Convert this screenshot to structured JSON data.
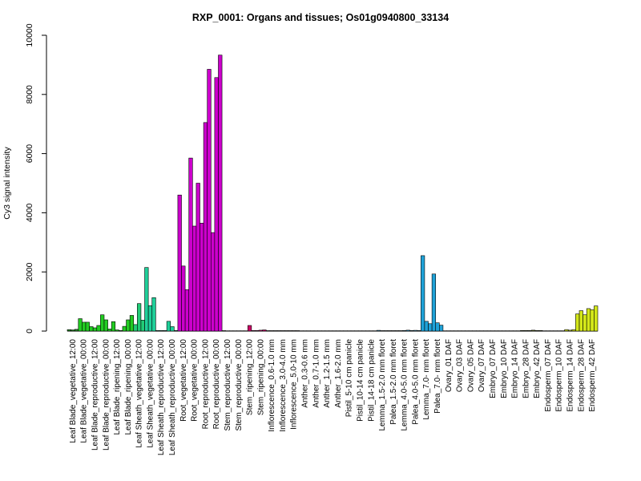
{
  "chart_data": {
    "type": "bar",
    "title": "RXP_0001: Organs and tissues; Os01g0940800_33134",
    "xlabel": "",
    "ylabel": "Cy3 signal intensity",
    "ylim": [
      0,
      10000
    ],
    "yticks": [
      0,
      2000,
      4000,
      6000,
      8000,
      10000
    ],
    "grid": false,
    "legend": "none",
    "groups": [
      {
        "label": "Leaf Blade_vegetative_12:00",
        "values": [
          50,
          40,
          60
        ],
        "color": "#2a8a2a"
      },
      {
        "label": "Leaf Blade_vegetative_00:00",
        "values": [
          420,
          300,
          300
        ],
        "color": "#22cc22"
      },
      {
        "label": "Leaf Blade_reproductive_12:00",
        "values": [
          150,
          110,
          190
        ],
        "color": "#22cc22"
      },
      {
        "label": "Leaf Blade_reproductive_00:00",
        "values": [
          550,
          380,
          70
        ],
        "color": "#22cc22"
      },
      {
        "label": "Leaf Blade_ripening_12:00",
        "values": [
          320,
          40,
          20
        ],
        "color": "#22cc22"
      },
      {
        "label": "Leaf Blade_ripening_00:00",
        "values": [
          160,
          380,
          530
        ],
        "color": "#22cc22"
      },
      {
        "label": "Leaf Sheath_vegetative_12:00",
        "values": [
          220,
          930,
          370
        ],
        "color": "#22cc77"
      },
      {
        "label": "Leaf Sheath_vegetative_00:00",
        "values": [
          2150,
          860,
          1130
        ],
        "color": "#1fcf99"
      },
      {
        "label": "Leaf Sheath_reproductive_12:00",
        "values": [
          20,
          20,
          20
        ],
        "color": "#1fcf99"
      },
      {
        "label": "Leaf Sheath_reproductive_00:00",
        "values": [
          330,
          150,
          20
        ],
        "color": "#1fcf99"
      },
      {
        "label": "Root_vegetative_12:00",
        "values": [
          4600,
          2200,
          1400
        ],
        "color": "#cc00cc"
      },
      {
        "label": "Root_vegetative_00:00",
        "values": [
          5850,
          3550,
          5000
        ],
        "color": "#cc00cc"
      },
      {
        "label": "Root_reproductive_12:00",
        "values": [
          3650,
          7050,
          8850
        ],
        "color": "#cc00cc"
      },
      {
        "label": "Root_reproductive_00:00",
        "values": [
          3330,
          8570,
          9330
        ],
        "color": "#cc00cc"
      },
      {
        "label": "Stem_reproductive_12:00",
        "values": [
          15,
          10,
          10
        ],
        "color": "#cc0066"
      },
      {
        "label": "Stem_reproductive_00:00",
        "values": [
          10,
          10,
          10
        ],
        "color": "#cc0066"
      },
      {
        "label": "Stem_ripening_12:00",
        "values": [
          10,
          190,
          20
        ],
        "color": "#cc0066"
      },
      {
        "label": "Stem_ripening_00:00",
        "values": [
          20,
          30,
          40
        ],
        "color": "#cc0066"
      },
      {
        "label": "Inflorescence_0.6-1.0 mm",
        "values": [
          15,
          15,
          15
        ],
        "color": "#b84040"
      },
      {
        "label": "Inflorescence_3.0-4.0 mm",
        "values": [
          15,
          15,
          15
        ],
        "color": "#b84040"
      },
      {
        "label": "Inflorescence_5.0-10 mm",
        "values": [
          15,
          15,
          15
        ],
        "color": "#b84040"
      },
      {
        "label": "Anther_0.3-0.6 mm",
        "values": [
          10,
          10,
          10
        ],
        "color": "#a05030"
      },
      {
        "label": "Anther_0.7-1.0 mm",
        "values": [
          10,
          10,
          10
        ],
        "color": "#a05030"
      },
      {
        "label": "Anther_1.2-1.5 mm",
        "values": [
          10,
          10,
          10
        ],
        "color": "#a05030"
      },
      {
        "label": "Anther_1.6-2.0 mm",
        "values": [
          10,
          10,
          10
        ],
        "color": "#a05030"
      },
      {
        "label": "Pistil_5-10 cm panicle",
        "values": [
          10,
          10,
          10
        ],
        "color": "#806020"
      },
      {
        "label": "Pistil_10-14 cm panicle",
        "values": [
          10,
          10,
          10
        ],
        "color": "#806020"
      },
      {
        "label": "Pistil_14-18 cm panicle",
        "values": [
          10,
          10,
          10
        ],
        "color": "#806020"
      },
      {
        "label": "Lemma_1.5-2.0 mm floret",
        "values": [
          25,
          15,
          15
        ],
        "color": "#2090c0"
      },
      {
        "label": "Palea_1.5-2.0 mm floret",
        "values": [
          15,
          15,
          15
        ],
        "color": "#2090c0"
      },
      {
        "label": "Lemma_4.0-5.0 mm floret",
        "values": [
          15,
          20,
          30
        ],
        "color": "#2090c0"
      },
      {
        "label": "Palea_4.0-5.0 mm floret",
        "values": [
          20,
          25,
          20
        ],
        "color": "#2090c0"
      },
      {
        "label": "Lemma_7.0- mm floret",
        "values": [
          2550,
          330,
          250
        ],
        "color": "#1fa2d8"
      },
      {
        "label": "Palea_7.0- mm floret",
        "values": [
          1930,
          280,
          200
        ],
        "color": "#1fa2d8"
      },
      {
        "label": "Ovary_01 DAF",
        "values": [
          10,
          10,
          10
        ],
        "color": "#5a6a1a"
      },
      {
        "label": "Ovary_03 DAF",
        "values": [
          10,
          10,
          10
        ],
        "color": "#5a6a1a"
      },
      {
        "label": "Ovary_05 DAF",
        "values": [
          10,
          10,
          10
        ],
        "color": "#5a6a1a"
      },
      {
        "label": "Ovary_07 DAF",
        "values": [
          10,
          10,
          10
        ],
        "color": "#5a6a1a"
      },
      {
        "label": "Embryo_07 DAF",
        "values": [
          10,
          10,
          10
        ],
        "color": "#5a6a1a"
      },
      {
        "label": "Embryo_10 DAF",
        "values": [
          10,
          10,
          10
        ],
        "color": "#5a6a1a"
      },
      {
        "label": "Embryo_14 DAF",
        "values": [
          10,
          10,
          10
        ],
        "color": "#5a6a1a"
      },
      {
        "label": "Embryo_28 DAF",
        "values": [
          20,
          20,
          20
        ],
        "color": "#5a6a1a"
      },
      {
        "label": "Embryo_42 DAF",
        "values": [
          30,
          20,
          20
        ],
        "color": "#5a6a1a"
      },
      {
        "label": "Endosperm_07 DAF",
        "values": [
          10,
          10,
          10
        ],
        "color": "#a0a020"
      },
      {
        "label": "Endosperm_10 DAF",
        "values": [
          10,
          10,
          10
        ],
        "color": "#a0a020"
      },
      {
        "label": "Endosperm_14 DAF",
        "values": [
          50,
          30,
          50
        ],
        "color": "#c8d820"
      },
      {
        "label": "Endosperm_28 DAF",
        "values": [
          580,
          690,
          550
        ],
        "color": "#d4e81a"
      },
      {
        "label": "Endosperm_42 DAF",
        "values": [
          760,
          720,
          850
        ],
        "color": "#d4e81a"
      }
    ]
  }
}
